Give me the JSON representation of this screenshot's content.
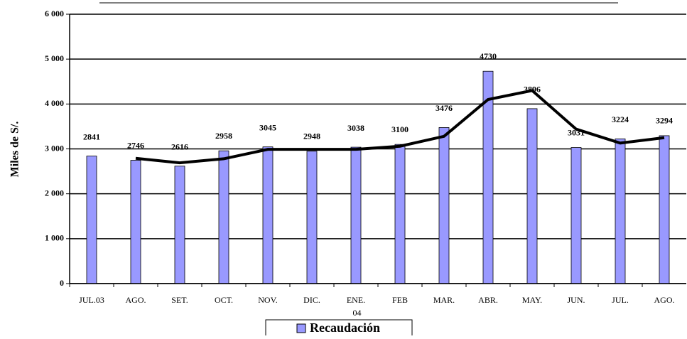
{
  "chart_data": {
    "type": "bar",
    "y_label": "Miles de S/.",
    "categories": [
      "JUL.03",
      "AGO.",
      "SET.",
      "OCT.",
      "NOV.",
      "DIC.",
      "ENE. 04",
      "FEB",
      "MAR.",
      "ABR.",
      "MAY.",
      "JUN.",
      "JUL.",
      "AGO."
    ],
    "series": [
      {
        "name": "Recaudación",
        "type": "bar",
        "color": "#9999ff",
        "values": [
          2841,
          2746,
          2616,
          2958,
          3045,
          2948,
          3038,
          3100,
          3476,
          4730,
          3896,
          3031,
          3224,
          3294
        ]
      },
      {
        "type": "line",
        "color": "#000000",
        "values": [
          null,
          2790,
          2690,
          2780,
          2990,
          2990,
          2990,
          3060,
          3280,
          4100,
          4300,
          3440,
          3130,
          3250
        ]
      }
    ],
    "ylim": [
      0,
      6000
    ],
    "yticks": [
      0,
      {
        "value": 1000,
        "label": "1 000"
      },
      {
        "value": 2000,
        "label": "2 000"
      },
      {
        "value": 3000,
        "label": "3 000"
      },
      {
        "value": 4000,
        "label": "4 000"
      },
      {
        "value": 5000,
        "label": "5 000"
      },
      {
        "value": 6000,
        "label": "6 000"
      }
    ],
    "grid": true
  }
}
